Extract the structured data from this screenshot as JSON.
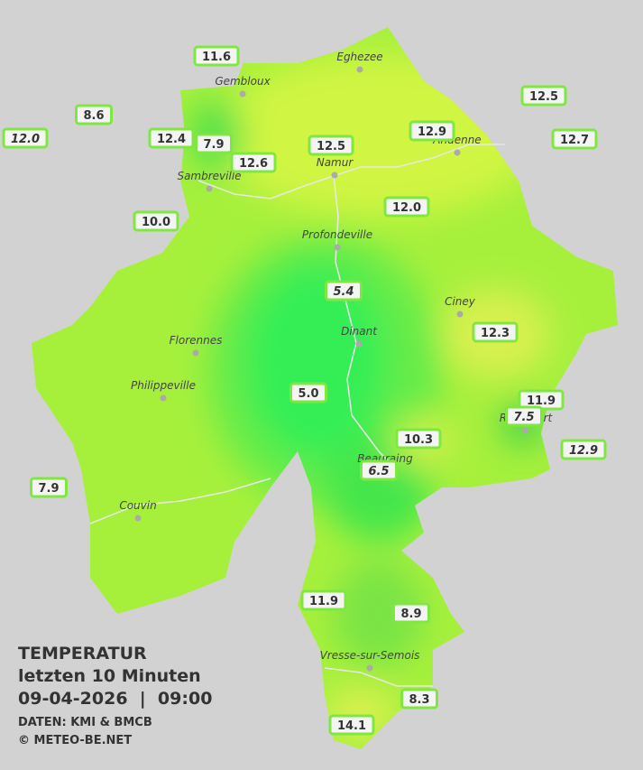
{
  "legend": {
    "title": "TEMPERATUR",
    "subtitle": "letzten 10 Minuten",
    "datetime": "09-04-2026  |  09:00",
    "source": "DATEN: KMI & BMCB",
    "copyright": "© METEO-BE.NET"
  },
  "cities": [
    "Eghezee",
    "Gembloux",
    "Andenne",
    "Namur",
    "Sambreville",
    "Profondeville",
    "Ciney",
    "Dinant",
    "Florennes",
    "Philippeville",
    "Rochefort",
    "Beauraing",
    "Couvin",
    "Vresse-sur-Semois"
  ],
  "stations": [
    {
      "label": "11.6",
      "italic": false
    },
    {
      "label": "8.6",
      "italic": false
    },
    {
      "label": "12.0",
      "italic": true
    },
    {
      "label": "12.4",
      "italic": false
    },
    {
      "label": "7.9",
      "italic": false
    },
    {
      "label": "12.6",
      "italic": false
    },
    {
      "label": "12.5",
      "italic": false
    },
    {
      "label": "12.9",
      "italic": false
    },
    {
      "label": "12.5",
      "italic": false
    },
    {
      "label": "12.7",
      "italic": false
    },
    {
      "label": "12.0",
      "italic": false
    },
    {
      "label": "10.0",
      "italic": false
    },
    {
      "label": "5.4",
      "italic": true
    },
    {
      "label": "12.3",
      "italic": false
    },
    {
      "label": "5.0",
      "italic": false
    },
    {
      "label": "11.9",
      "italic": false
    },
    {
      "label": "7.5",
      "italic": true
    },
    {
      "label": "10.3",
      "italic": false
    },
    {
      "label": "12.9",
      "italic": true
    },
    {
      "label": "6.5",
      "italic": true
    },
    {
      "label": "7.9",
      "italic": false
    },
    {
      "label": "11.9",
      "italic": false
    },
    {
      "label": "8.9",
      "italic": false
    },
    {
      "label": "8.3",
      "italic": false
    },
    {
      "label": "14.1",
      "italic": false
    }
  ]
}
